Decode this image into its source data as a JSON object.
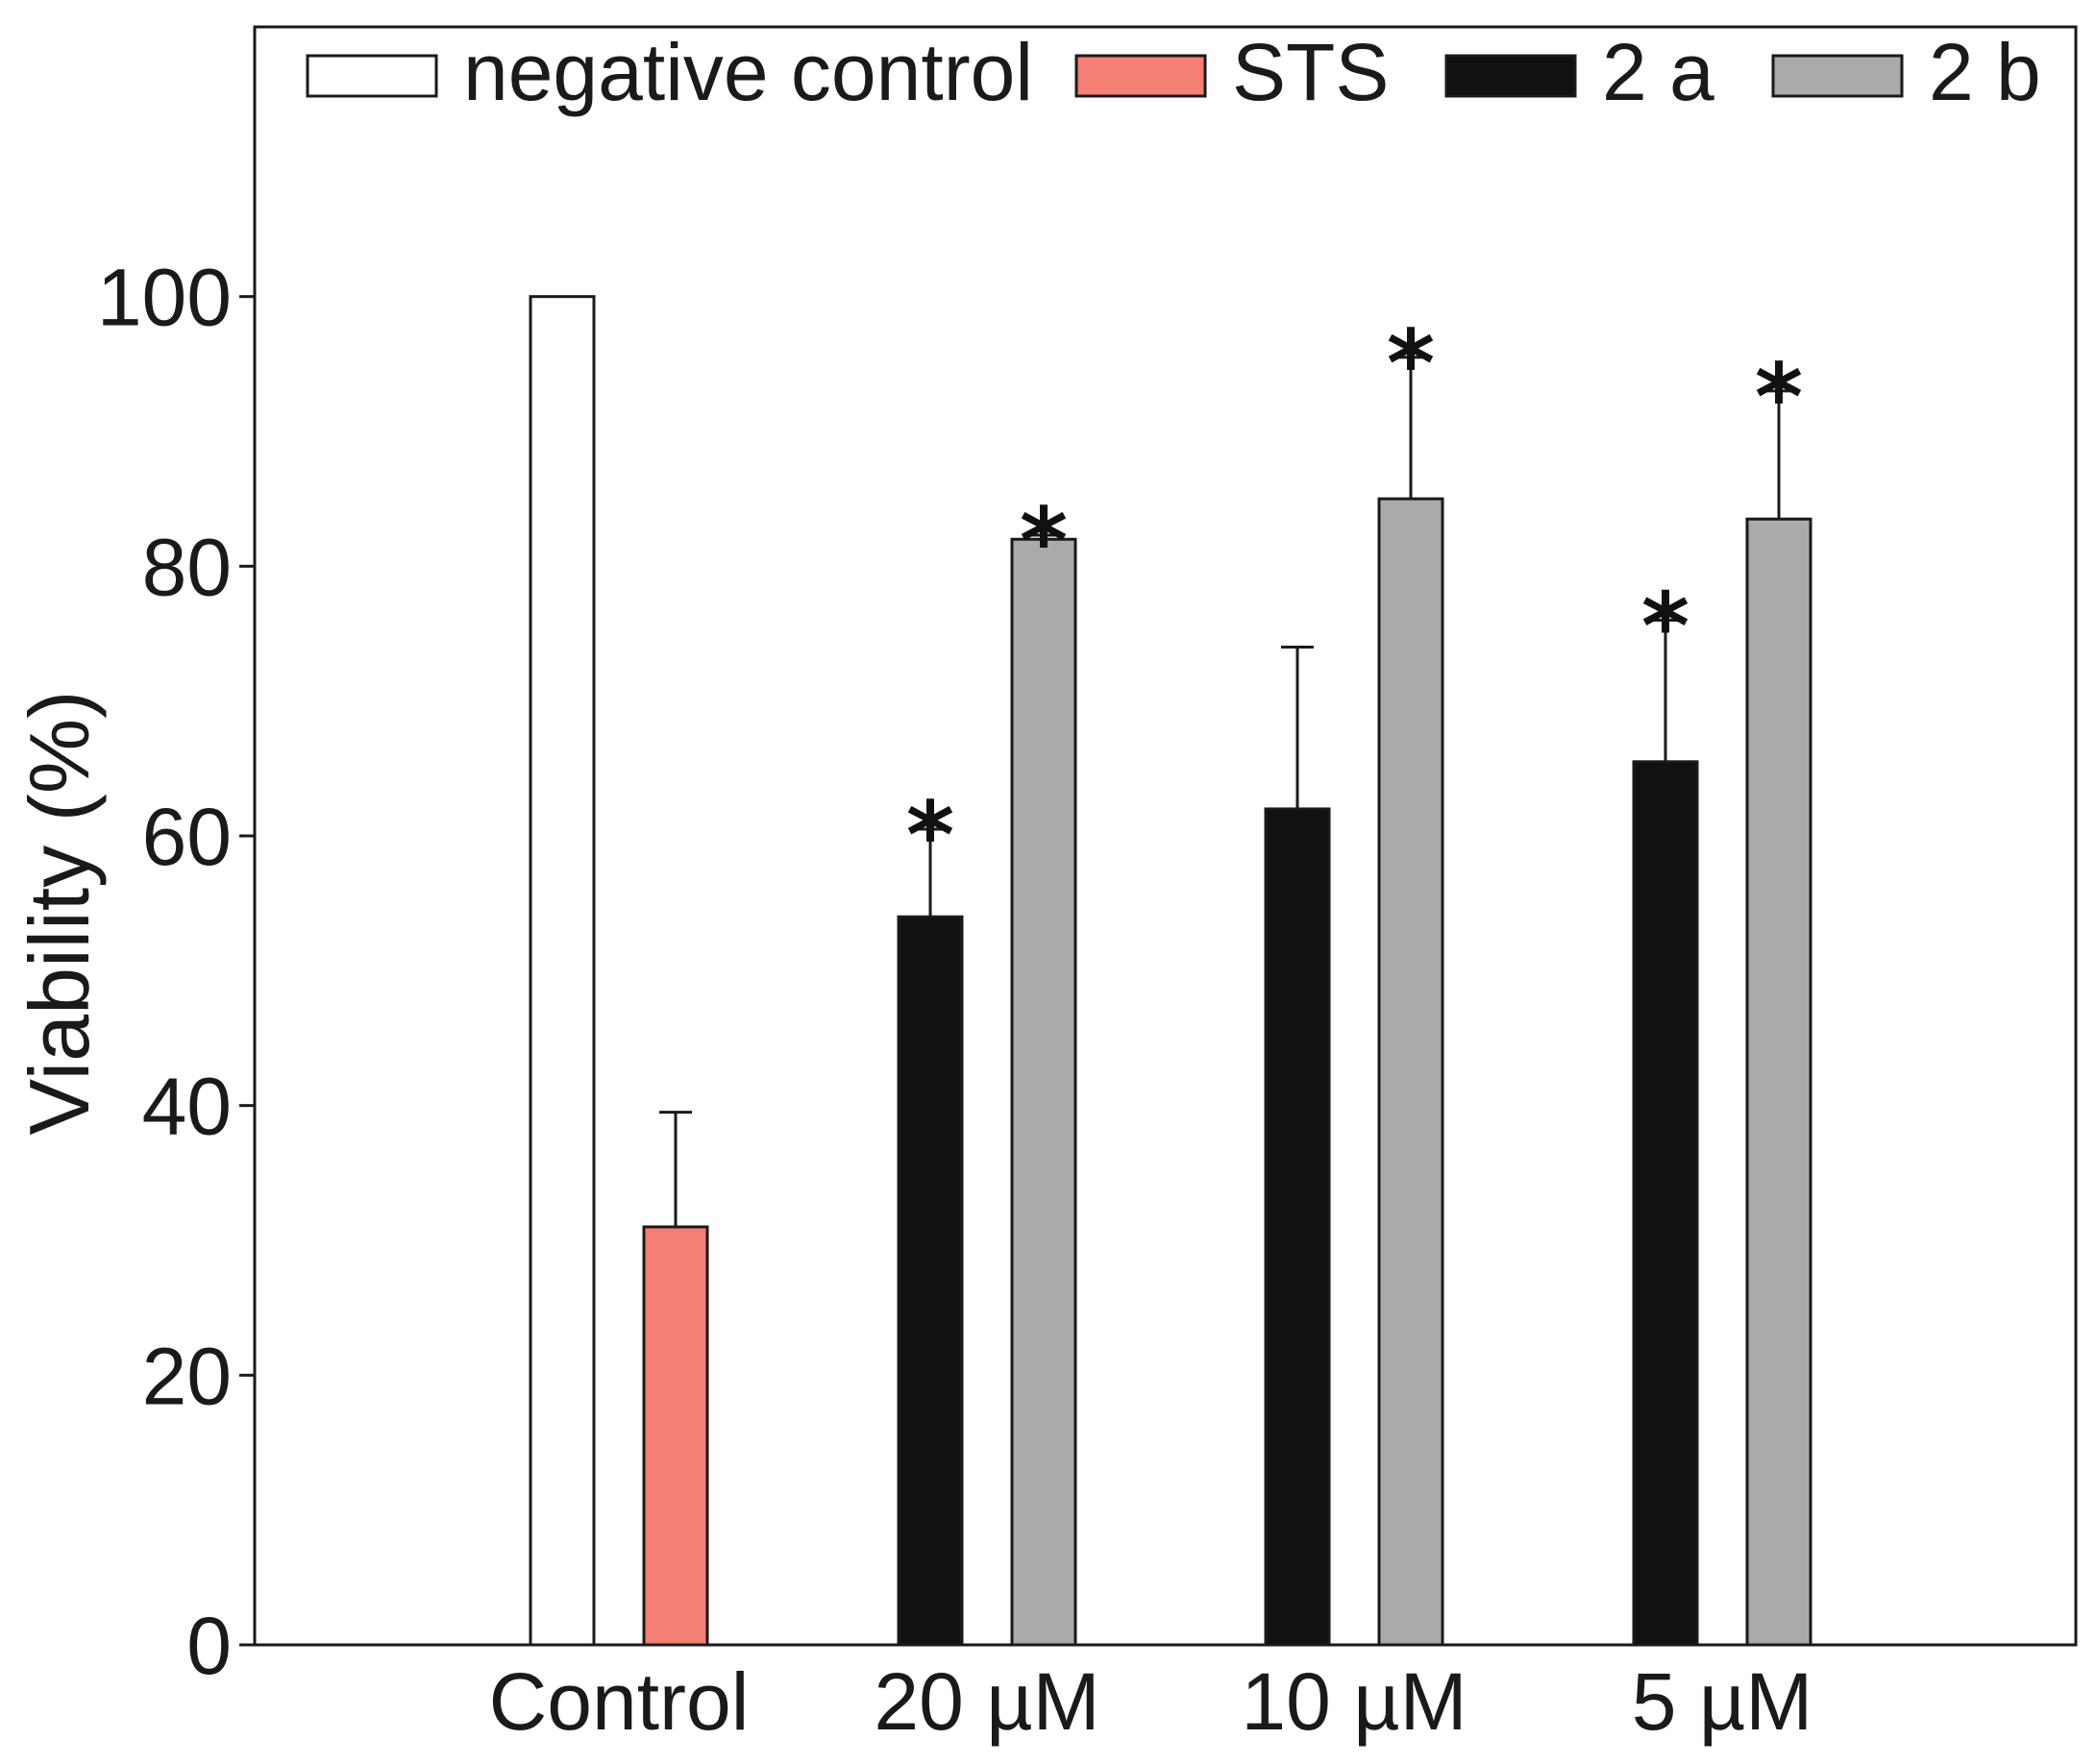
{
  "chart_data": {
    "type": "bar",
    "title": "",
    "xlabel": "",
    "ylabel": "Viability (%)",
    "ylim": [
      0,
      120
    ],
    "yticks": [
      0,
      20,
      40,
      60,
      80,
      100
    ],
    "grid": false,
    "legend_position": "top",
    "groups": [
      {
        "label": "Control",
        "bars": [
          {
            "series": "negative control",
            "value": 100,
            "error": null,
            "significant": false
          },
          {
            "series": "STS",
            "value": 31,
            "error": 8.5,
            "significant": false
          }
        ]
      },
      {
        "label": "20 µM",
        "bars": [
          {
            "series": "2 a",
            "value": 54,
            "error": 6.5,
            "significant": true
          },
          {
            "series": "2 b",
            "value": 82,
            "error": 0.3,
            "significant": true
          }
        ]
      },
      {
        "label": "10 µM",
        "bars": [
          {
            "series": "2 a",
            "value": 62,
            "error": 12,
            "significant": false
          },
          {
            "series": "2 b",
            "value": 85,
            "error": 10.5,
            "significant": true
          }
        ]
      },
      {
        "label": "5 µM",
        "bars": [
          {
            "series": "2 a",
            "value": 65.5,
            "error": 10.5,
            "significant": true
          },
          {
            "series": "2 b",
            "value": 83.5,
            "error": 9.5,
            "significant": true
          }
        ]
      }
    ],
    "series": [
      {
        "name": "negative control",
        "color": "#ffffff"
      },
      {
        "name": "STS",
        "color": "#f47f75"
      },
      {
        "name": "2 a",
        "color": "#111111"
      },
      {
        "name": "2 b",
        "color": "#aaaaaa"
      }
    ],
    "significance_marker": "*"
  }
}
